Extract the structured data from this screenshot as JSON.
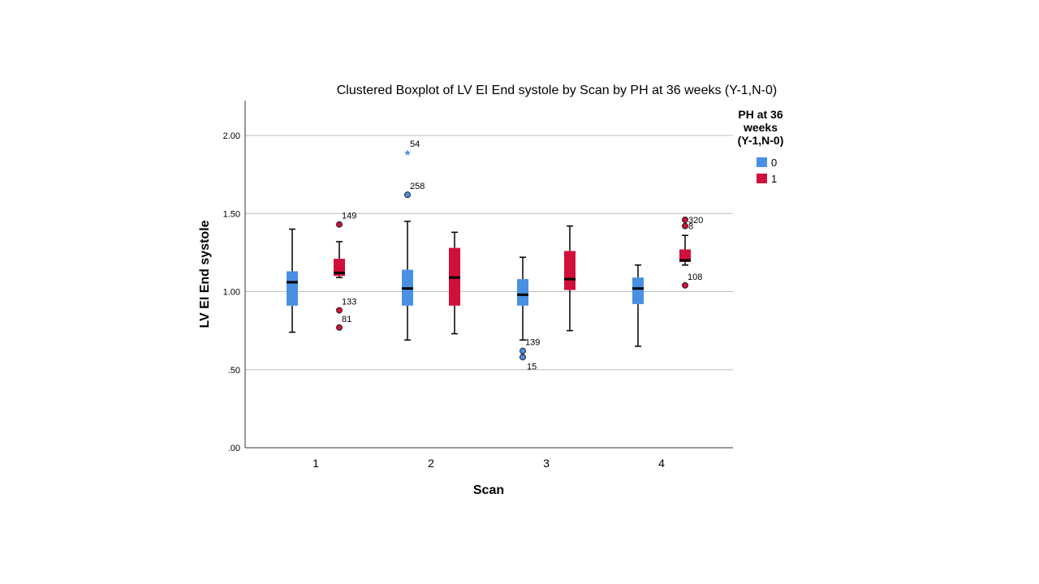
{
  "chart_data": {
    "type": "boxplot",
    "title": "Clustered Boxplot of LV EI End systole by Scan by PH at 36 weeks (Y-1,N-0)",
    "xlabel": "Scan",
    "ylabel": "LV EI End systole",
    "ylim": [
      0,
      2.2
    ],
    "y_ticks": [
      {
        "value": 0,
        "label": ".00"
      },
      {
        "value": 0.5,
        "label": ".50"
      },
      {
        "value": 1.0,
        "label": "1.00"
      },
      {
        "value": 1.5,
        "label": "1.50"
      },
      {
        "value": 2.0,
        "label": "2.00"
      }
    ],
    "grid": true,
    "categories": [
      "1",
      "2",
      "3",
      "4"
    ],
    "legend": {
      "title_lines": [
        "PH at 36",
        "weeks",
        "(Y-1,N-0)"
      ],
      "placement": "top-right"
    },
    "series": [
      {
        "name": "0",
        "color": "#4a90e2",
        "boxes": [
          {
            "category": "1",
            "min": 0.74,
            "q1": 0.91,
            "median": 1.06,
            "q3": 1.13,
            "max": 1.4,
            "outliers": []
          },
          {
            "category": "2",
            "min": 0.69,
            "q1": 0.91,
            "median": 1.02,
            "q3": 1.14,
            "max": 1.45,
            "outliers": [
              {
                "value": 1.89,
                "label": "54",
                "marker": "star"
              },
              {
                "value": 1.62,
                "label": "258",
                "marker": "circle"
              }
            ]
          },
          {
            "category": "3",
            "min": 0.69,
            "q1": 0.91,
            "median": 0.98,
            "q3": 1.08,
            "max": 1.22,
            "outliers": [
              {
                "value": 0.62,
                "label": "139",
                "marker": "circle"
              },
              {
                "value": 0.58,
                "label": "15",
                "marker": "circle"
              }
            ]
          },
          {
            "category": "4",
            "min": 0.65,
            "q1": 0.92,
            "median": 1.02,
            "q3": 1.09,
            "max": 1.17,
            "outliers": []
          }
        ]
      },
      {
        "name": "1",
        "color": "#d0103a",
        "boxes": [
          {
            "category": "1",
            "min": 1.09,
            "q1": 1.1,
            "median": 1.12,
            "q3": 1.21,
            "max": 1.32,
            "outliers": [
              {
                "value": 1.43,
                "label": "149",
                "marker": "circle"
              },
              {
                "value": 0.88,
                "label": "133",
                "marker": "circle"
              },
              {
                "value": 0.77,
                "label": "81",
                "marker": "circle"
              }
            ]
          },
          {
            "category": "2",
            "min": 0.73,
            "q1": 0.91,
            "median": 1.09,
            "q3": 1.28,
            "max": 1.38,
            "outliers": []
          },
          {
            "category": "3",
            "min": 0.75,
            "q1": 1.01,
            "median": 1.08,
            "q3": 1.26,
            "max": 1.42,
            "outliers": []
          },
          {
            "category": "4",
            "min": 1.17,
            "q1": 1.19,
            "median": 1.2,
            "q3": 1.27,
            "max": 1.36,
            "outliers": [
              {
                "value": 1.46,
                "label": "320",
                "marker": "circle"
              },
              {
                "value": 1.42,
                "label": "8",
                "marker": "circle"
              },
              {
                "value": 1.04,
                "label": "108",
                "marker": "circle"
              }
            ]
          }
        ]
      }
    ]
  }
}
